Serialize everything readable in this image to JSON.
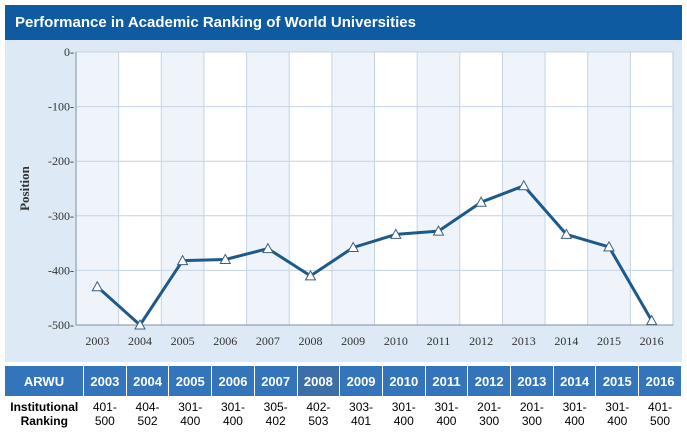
{
  "title": "Performance in Academic Ranking of World Universities",
  "chart_data": {
    "type": "line",
    "title": "",
    "xlabel": "",
    "ylabel": "Position",
    "categories": [
      "2003",
      "2004",
      "2005",
      "2006",
      "2007",
      "2008",
      "2009",
      "2010",
      "2011",
      "2012",
      "2013",
      "2014",
      "2015",
      "2016"
    ],
    "series": [
      {
        "values": [
          -430,
          -500,
          -382,
          -380,
          -360,
          -410,
          -358,
          -334,
          -328,
          -275,
          -245,
          -334,
          -357,
          -492
        ]
      }
    ],
    "yticks": [
      0,
      -100,
      -200,
      -300,
      -400,
      -500
    ],
    "ytick_labels": [
      "0-",
      "-100-",
      "-200-",
      "-300-",
      "-400-",
      "-500-"
    ],
    "ylim": [
      -500,
      0
    ],
    "grid": true,
    "legend": "none",
    "line_color": "#1d5a8c",
    "marker": "triangle"
  },
  "table": {
    "header_label": "ARWU",
    "years": [
      "2003",
      "2004",
      "2005",
      "2006",
      "2007",
      "2008",
      "2009",
      "2010",
      "2011",
      "2012",
      "2013",
      "2014",
      "2015",
      "2016"
    ],
    "highlight_years": [
      "2008"
    ],
    "row_label": "Institutional\nRanking",
    "rankings": [
      "401-\n500",
      "404-\n502",
      "301-\n400",
      "301-\n400",
      "305-\n402",
      "402-\n503",
      "303-\n401",
      "301-\n400",
      "301-\n400",
      "201-\n300",
      "201-\n300",
      "301-\n400",
      "301-\n400",
      "401-\n500"
    ]
  },
  "colors": {
    "header_bg": "#0e5ba2",
    "plot_bg": "#ffffff",
    "plot_band": "#eef4fa",
    "panel_bg": "#dde9f4",
    "table_header_bg": "#3474ba"
  }
}
